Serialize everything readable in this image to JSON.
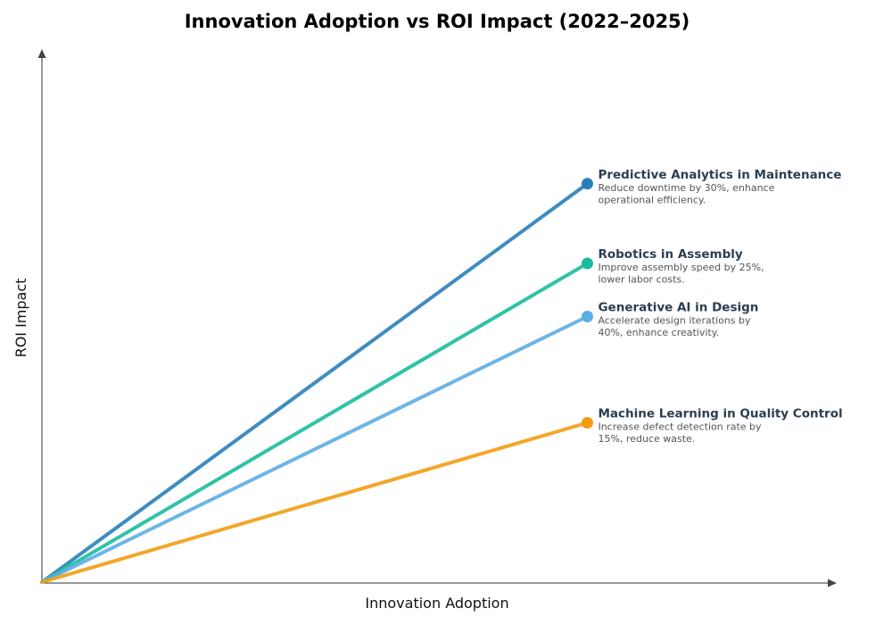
{
  "chart_data": {
    "type": "line",
    "title": "Innovation Adoption vs ROI Impact (2022–2025)",
    "xlabel": "Innovation Adoption",
    "ylabel": "ROI Impact",
    "xlim": [
      0,
      102
    ],
    "ylim": [
      0,
      100
    ],
    "grid": false,
    "ticks_shown": false,
    "series": [
      {
        "name": "Predictive Analytics in Maintenance",
        "description_lines": [
          "Reduce downtime by 30%, enhance",
          "operational efficiency."
        ],
        "x": [
          0,
          70
        ],
        "y": [
          0,
          75
        ],
        "color": "#2980b9"
      },
      {
        "name": "Robotics in Assembly",
        "description_lines": [
          "Improve assembly speed by 25%,",
          "lower labor costs."
        ],
        "x": [
          0,
          70
        ],
        "y": [
          0,
          60
        ],
        "color": "#1abc9c"
      },
      {
        "name": "Generative AI in Design",
        "description_lines": [
          "Accelerate design iterations by",
          "40%, enhance creativity."
        ],
        "x": [
          0,
          70
        ],
        "y": [
          0,
          50
        ],
        "color": "#5dade2"
      },
      {
        "name": "Machine Learning in Quality Control",
        "description_lines": [
          "Increase defect detection rate by",
          "15%, reduce waste."
        ],
        "x": [
          0,
          70
        ],
        "y": [
          0,
          30
        ],
        "color": "#f39c12"
      }
    ]
  }
}
